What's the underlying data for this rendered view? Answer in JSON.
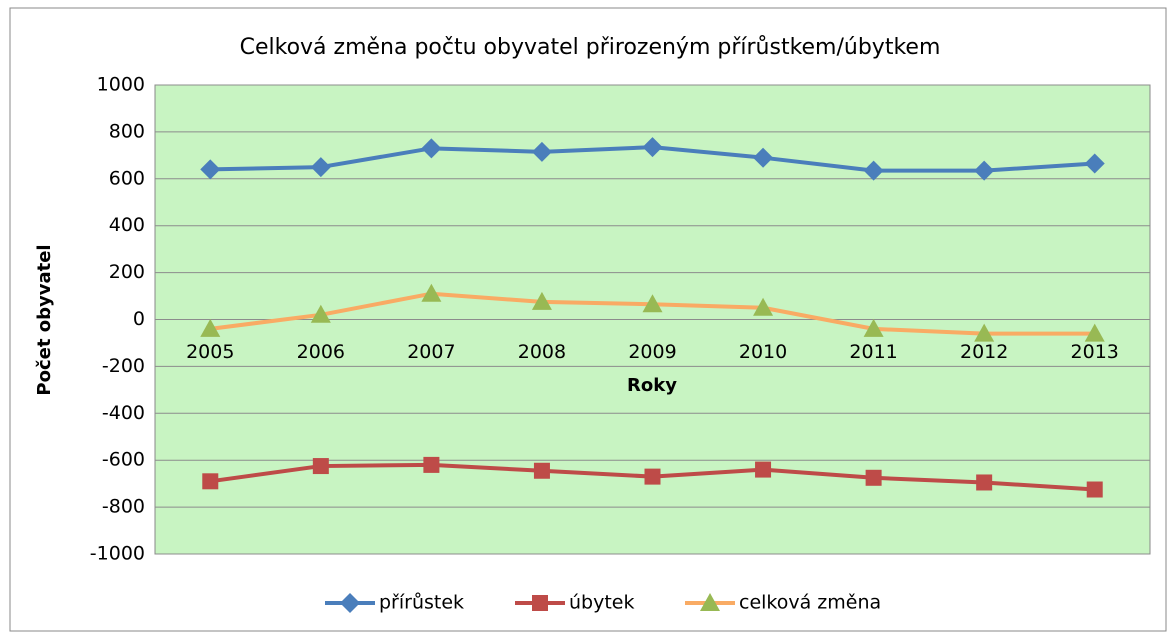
{
  "chart_data": {
    "type": "line",
    "title": "Celková změna počtu obyvatel přirozeným přírůstkem/úbytkem",
    "x_label": "Roky",
    "y_label": "Počet obyvatel",
    "categories": [
      "2005",
      "2006",
      "2007",
      "2008",
      "2009",
      "2010",
      "2011",
      "2012",
      "2013"
    ],
    "series": [
      {
        "name": "přírůstek",
        "color": "#4a7ebb",
        "marker_color": "#4a7ebb",
        "marker": "diamond",
        "values": [
          640,
          650,
          730,
          715,
          735,
          690,
          635,
          635,
          665
        ]
      },
      {
        "name": "úbytek",
        "color": "#be4b48",
        "marker_color": "#be4b48",
        "marker": "square",
        "values": [
          -690,
          -625,
          -620,
          -645,
          -670,
          -640,
          -675,
          -695,
          -725
        ]
      },
      {
        "name": "celková změna",
        "color": "#f9ab64",
        "marker_color": "#98b954",
        "marker": "triangle",
        "values": [
          -40,
          20,
          110,
          75,
          65,
          50,
          -40,
          -60,
          -60
        ]
      }
    ],
    "ylim": [
      -1000,
      1000
    ],
    "yticks": [
      1000,
      800,
      600,
      400,
      200,
      0,
      -200,
      -400,
      -600,
      -800,
      -1000
    ],
    "grid": true,
    "legend": "bottom",
    "plot_background": "#c8f4c2"
  }
}
